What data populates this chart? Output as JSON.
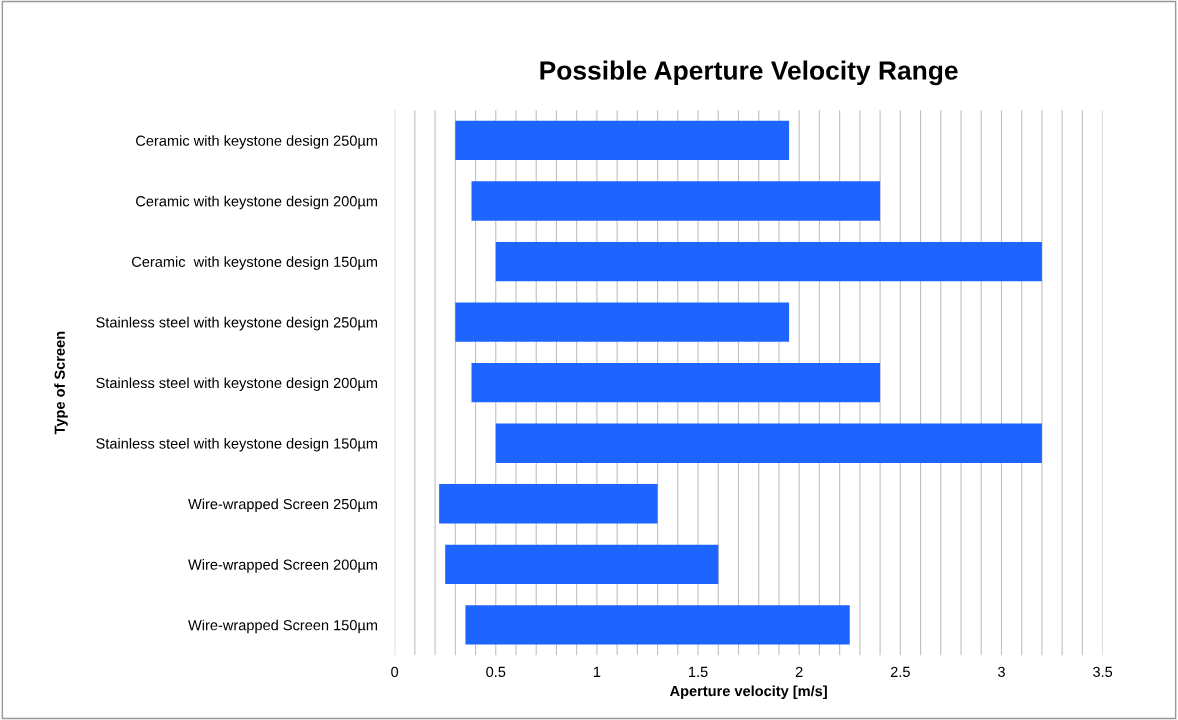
{
  "chart_data": {
    "type": "bar",
    "orientation": "horizontal",
    "title": "Possible Aperture Velocity Range",
    "xlabel": "Aperture velocity [m/s]",
    "ylabel": "Type of Screen",
    "categories": [
      "Ceramic with keystone design 250µm",
      "Ceramic with keystone design 200µm",
      "Ceramic  with keystone design 150µm",
      "Stainless steel with keystone design 250µm",
      "Stainless steel with keystone design 200µm",
      "Stainless steel with keystone design 150µm",
      "Wire-wrapped Screen 250µm",
      "Wire-wrapped Screen 200µm",
      "Wire-wrapped Screen 150µm"
    ],
    "base": [
      0.3,
      0.38,
      0.5,
      0.3,
      0.38,
      0.5,
      0.22,
      0.25,
      0.35
    ],
    "values": [
      1.65,
      2.02,
      2.7,
      1.65,
      2.02,
      2.7,
      1.08,
      1.35,
      1.9
    ],
    "color": "#1e64ff",
    "xlim": [
      0,
      3.5
    ],
    "xticks": [
      0,
      {
        "value": 0.1,
        "label": null
      },
      {
        "value": 0.2,
        "label": null
      },
      {
        "value": 0.3,
        "label": null
      },
      {
        "value": 0.4,
        "label": null
      },
      0.5,
      {
        "value": 0.6,
        "label": null
      },
      {
        "value": 0.7,
        "label": null
      },
      {
        "value": 0.8,
        "label": null
      },
      {
        "value": 0.9,
        "label": null
      },
      1,
      {
        "value": 1.1,
        "label": null
      },
      {
        "value": 1.2,
        "label": null
      },
      {
        "value": 1.3,
        "label": null
      },
      {
        "value": 1.4,
        "label": null
      },
      1.5,
      {
        "value": 1.6,
        "label": null
      },
      {
        "value": 1.7,
        "label": null
      },
      {
        "value": 1.8,
        "label": null
      },
      {
        "value": 1.9,
        "label": null
      },
      2,
      {
        "value": 2.1,
        "label": null
      },
      {
        "value": 2.2,
        "label": null
      },
      {
        "value": 2.3,
        "label": null
      },
      {
        "value": 2.4,
        "label": null
      },
      2.5,
      {
        "value": 2.6,
        "label": null
      },
      {
        "value": 2.7,
        "label": null
      },
      {
        "value": 2.8,
        "label": null
      },
      {
        "value": 2.9,
        "label": null
      },
      3,
      {
        "value": 3.1,
        "label": null
      },
      {
        "value": 3.2,
        "label": null
      },
      {
        "value": 3.3,
        "label": null
      },
      {
        "value": 3.4,
        "label": null
      },
      3.5
    ],
    "grid": "x",
    "legend": false
  }
}
